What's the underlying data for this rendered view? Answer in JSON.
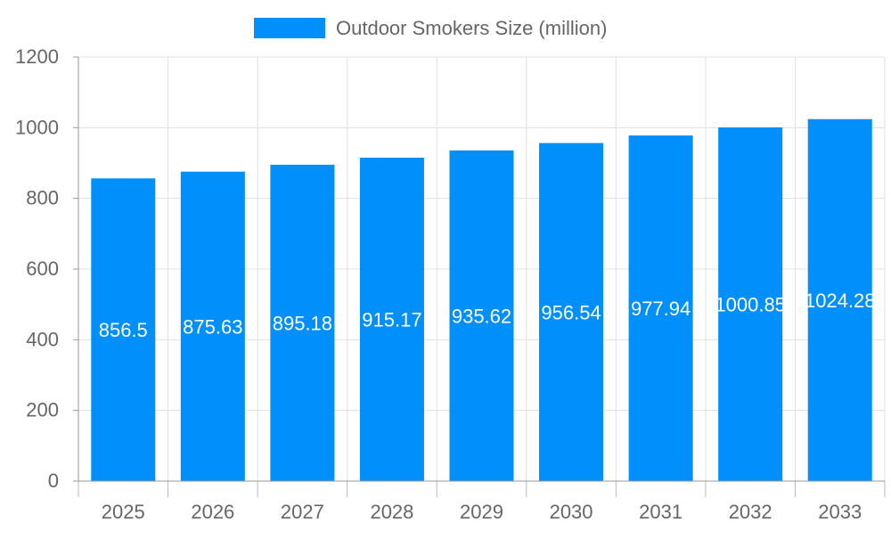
{
  "chart_data": {
    "type": "bar",
    "categories": [
      "2025",
      "2026",
      "2027",
      "2028",
      "2029",
      "2030",
      "2031",
      "2032",
      "2033"
    ],
    "series": [
      {
        "name": "Outdoor Smokers Size (million)",
        "values": [
          856.5,
          875.63,
          895.18,
          915.17,
          935.62,
          956.54,
          977.94,
          1000.85,
          1024.28
        ]
      }
    ],
    "ylim": [
      0,
      1200
    ],
    "yticks": [
      0,
      200,
      400,
      600,
      800,
      1000,
      1200
    ],
    "grid": true,
    "legend": "top",
    "data_labels": true,
    "colors": {
      "bar": "#008ffb",
      "label": "#ffffff",
      "grid": "#e0e0e0",
      "axis_text": "#666666"
    }
  }
}
